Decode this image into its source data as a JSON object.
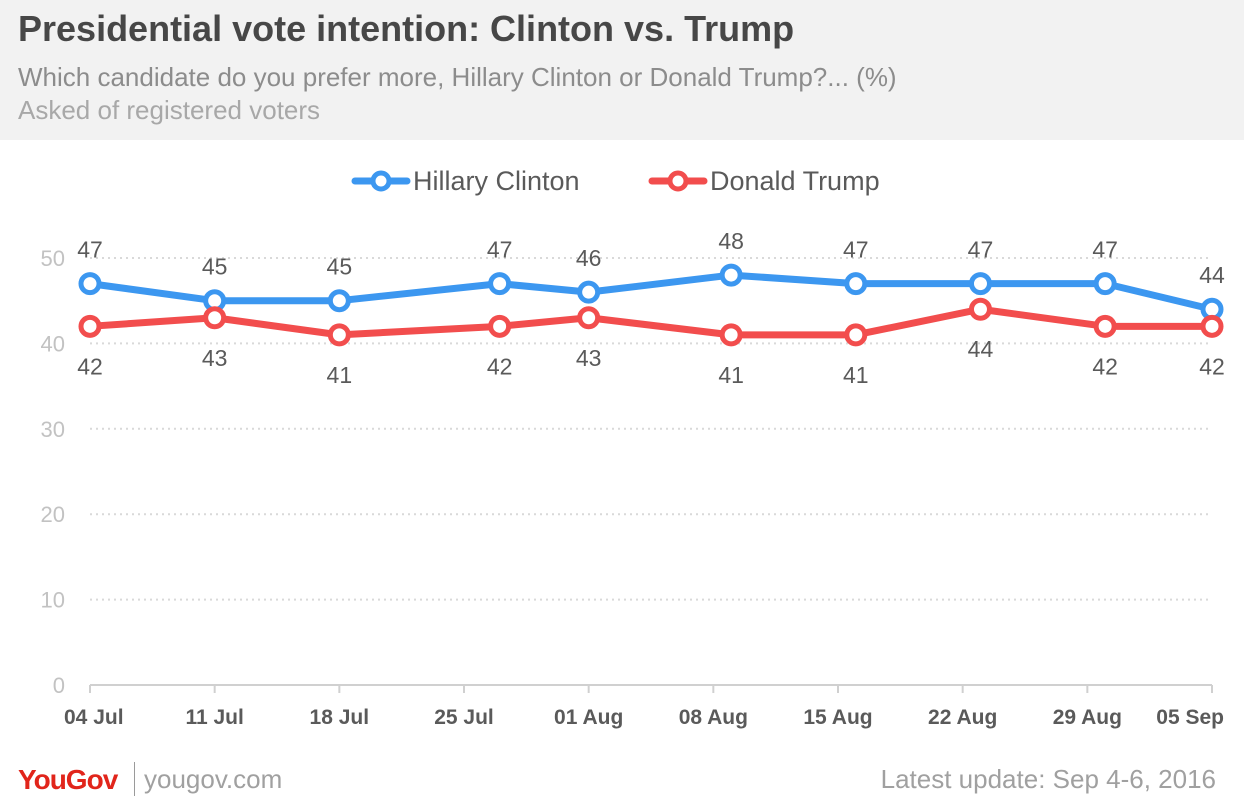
{
  "header": {
    "title": "Presidential vote intention: Clinton vs. Trump",
    "subtitle": "Which candidate do you prefer more, Hillary Clinton or Donald Trump?... (%)",
    "note": "Asked of registered voters"
  },
  "chart_data": {
    "type": "line",
    "x": [
      "04 Jul",
      "11 Jul",
      "18 Jul",
      "25 Jul",
      "01 Aug",
      "08 Aug",
      "15 Aug",
      "22 Aug",
      "29 Aug",
      "05 Sep"
    ],
    "x_dates": [
      "2016-07-04",
      "2016-07-11",
      "2016-07-18",
      "2016-07-25",
      "2016-08-01",
      "2016-08-08",
      "2016-08-15",
      "2016-08-22",
      "2016-08-29",
      "2016-09-05"
    ],
    "points_x": [
      "2016-07-04",
      "2016-07-11",
      "2016-07-18",
      "2016-07-27",
      "2016-08-01",
      "2016-08-09",
      "2016-08-16",
      "2016-08-23",
      "2016-08-30",
      "2016-09-05"
    ],
    "series": [
      {
        "name": "Hillary Clinton",
        "color": "#3c97f0",
        "values": [
          47,
          45,
          45,
          47,
          46,
          48,
          47,
          47,
          47,
          44
        ],
        "label_position": "above"
      },
      {
        "name": "Donald Trump",
        "color": "#f24d4d",
        "values": [
          42,
          43,
          41,
          42,
          43,
          41,
          41,
          44,
          42,
          42
        ],
        "label_position": "below"
      }
    ],
    "yticks": [
      0,
      10,
      20,
      30,
      40,
      50
    ],
    "ylim": [
      0,
      50
    ],
    "grid": true,
    "legend": "top-center"
  },
  "footer": {
    "logo": "YouGov",
    "url": "yougov.com",
    "update": "Latest update: Sep 4-6, 2016"
  }
}
